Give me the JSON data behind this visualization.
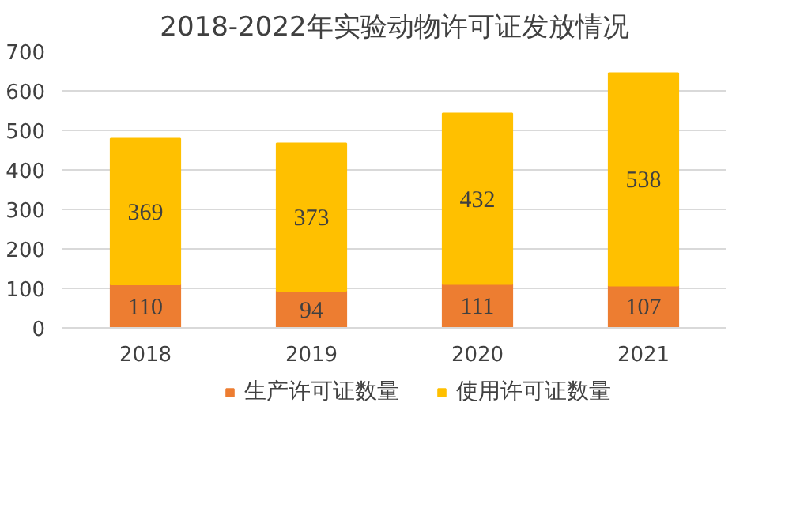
{
  "chart_data": {
    "type": "bar",
    "title": "2018-2022年实验动物许可证发放情况",
    "categories": [
      "2018",
      "2019",
      "2020",
      "2021"
    ],
    "stacked": true,
    "series": [
      {
        "name": "生产许可证数量",
        "color": "#ed7d31",
        "values": [
          110,
          94,
          111,
          107
        ]
      },
      {
        "name": "使用许可证数量",
        "color": "#ffc000",
        "values": [
          369,
          373,
          432,
          538
        ]
      }
    ],
    "ylim": [
      0,
      700
    ],
    "yticks": [
      0,
      100,
      200,
      300,
      400,
      500,
      600,
      700
    ],
    "grid": "y",
    "legend": "bottom",
    "data_labels": true
  }
}
